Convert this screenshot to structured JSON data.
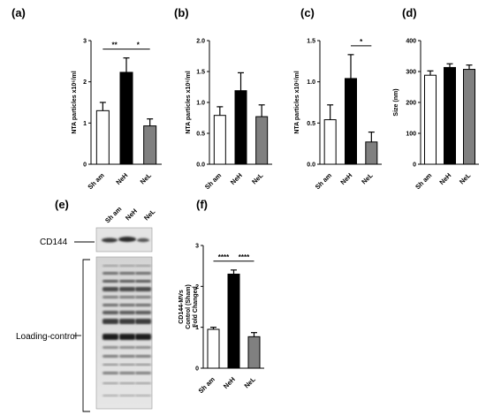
{
  "panels": {
    "a": "(a)",
    "b": "(b)",
    "c": "(c)",
    "d": "(d)",
    "e": "(e)",
    "f": "(f)"
  },
  "blot": {
    "lanes": [
      "Sh am",
      "NeH",
      "NeL"
    ],
    "band_label": "CD144",
    "loading_label": "Loading-control"
  },
  "chart_data": [
    {
      "id": "a",
      "type": "bar",
      "categories": [
        "Sh am",
        "NeH",
        "NeL"
      ],
      "values": [
        1.3,
        2.23,
        0.93
      ],
      "errors": [
        0.2,
        0.35,
        0.17
      ],
      "colors": [
        "#ffffff",
        "#000000",
        "#808080"
      ],
      "ylabel": "NTA particles x10⁶/ml",
      "ylim": [
        0,
        3
      ],
      "yticks": [
        0,
        1,
        2,
        3
      ],
      "ytick_labels": [
        "0",
        "1",
        "2",
        "3"
      ],
      "significance": [
        {
          "from": 0,
          "to": 1,
          "label": "**"
        },
        {
          "from": 1,
          "to": 2,
          "label": "*"
        }
      ]
    },
    {
      "id": "b",
      "type": "bar",
      "categories": [
        "Sh am",
        "NeH",
        "NeL"
      ],
      "values": [
        0.79,
        1.19,
        0.77
      ],
      "errors": [
        0.14,
        0.29,
        0.19
      ],
      "colors": [
        "#ffffff",
        "#000000",
        "#808080"
      ],
      "ylabel": "NTA particles x10⁶/ml",
      "ylim": [
        0,
        2
      ],
      "yticks": [
        0,
        0.5,
        1,
        1.5,
        2
      ],
      "ytick_labels": [
        "0.0",
        "0.5",
        "1.0",
        "1.5",
        "2.0"
      ],
      "significance": []
    },
    {
      "id": "c",
      "type": "bar",
      "categories": [
        "Sh am",
        "NeH",
        "NeL"
      ],
      "values": [
        0.54,
        1.04,
        0.27
      ],
      "errors": [
        0.18,
        0.29,
        0.12
      ],
      "colors": [
        "#ffffff",
        "#000000",
        "#808080"
      ],
      "ylabel": "NTA particles x10⁶/ml",
      "ylim": [
        0,
        1.5
      ],
      "yticks": [
        0,
        0.5,
        1,
        1.5
      ],
      "ytick_labels": [
        "0.0",
        "0.5",
        "1.0",
        "1.5"
      ],
      "significance": [
        {
          "from": 1,
          "to": 2,
          "label": "*"
        }
      ]
    },
    {
      "id": "d",
      "type": "bar",
      "categories": [
        "Sh am",
        "NeH",
        "NeL"
      ],
      "values": [
        288,
        313,
        307
      ],
      "errors": [
        14,
        12,
        14
      ],
      "colors": [
        "#ffffff",
        "#000000",
        "#808080"
      ],
      "ylabel": "Size (nm)",
      "ylim": [
        0,
        400
      ],
      "yticks": [
        0,
        100,
        200,
        300,
        400
      ],
      "ytick_labels": [
        "0",
        "100",
        "200",
        "300",
        "400"
      ],
      "significance": []
    },
    {
      "id": "f",
      "type": "bar",
      "categories": [
        "Sh am",
        "NeH",
        "NeL"
      ],
      "values": [
        0.95,
        2.3,
        0.77
      ],
      "errors": [
        0.05,
        0.1,
        0.1
      ],
      "colors": [
        "#ffffff",
        "#000000",
        "#808080"
      ],
      "ylabel_lines": [
        "CD144-MVs",
        "Control (Sham)",
        "Fold Changed"
      ],
      "ylim": [
        0,
        3
      ],
      "yticks": [
        0,
        1,
        2,
        3
      ],
      "ytick_labels": [
        "0",
        "1",
        "2",
        "3"
      ],
      "significance": [
        {
          "from": 0,
          "to": 1,
          "label": "****"
        },
        {
          "from": 1,
          "to": 2,
          "label": "****"
        }
      ]
    }
  ]
}
